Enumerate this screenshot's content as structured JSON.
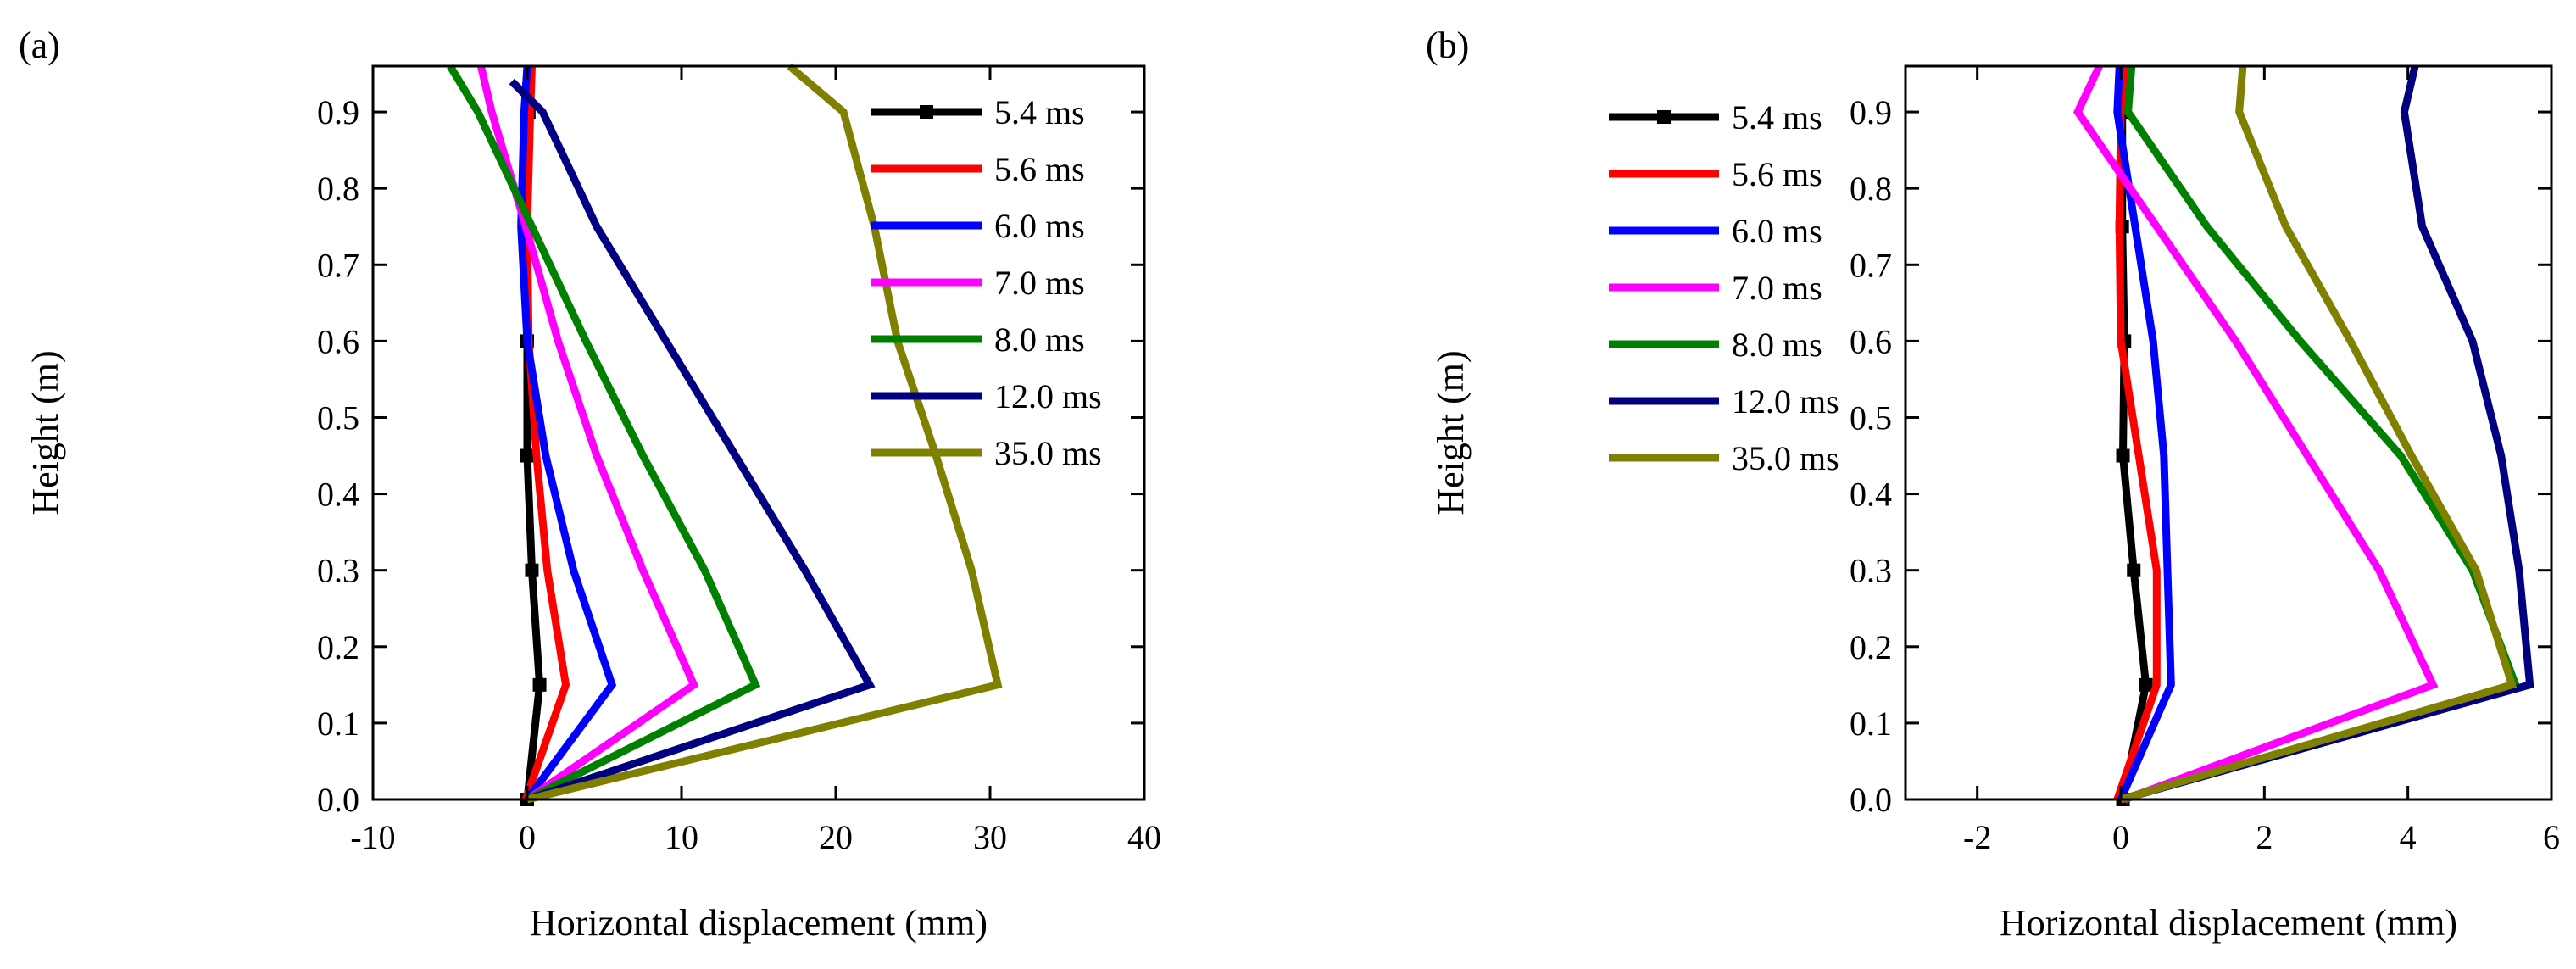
{
  "chart_data": [
    {
      "panel_label": "(a)",
      "type": "line",
      "xlabel": "Horizontal displacement (mm)",
      "ylabel": "Height (m)",
      "xlim": [
        -10,
        40
      ],
      "ylim": [
        0,
        0.96
      ],
      "xticks": [
        -10,
        0,
        10,
        20,
        30,
        40
      ],
      "xtick_labels": [
        "-10",
        "0",
        "10",
        "20",
        "30",
        "40"
      ],
      "yticks": [
        0.0,
        0.1,
        0.2,
        0.3,
        0.4,
        0.5,
        0.6,
        0.7,
        0.8,
        0.9
      ],
      "ytick_labels": [
        "0.0",
        "0.1",
        "0.2",
        "0.3",
        "0.4",
        "0.5",
        "0.6",
        "0.7",
        "0.8",
        "0.9"
      ],
      "legend_position": "top-right",
      "series": [
        {
          "name": "5.4 ms",
          "color": "#000000",
          "marker": "square",
          "x": [
            0,
            0.8,
            0.3,
            0,
            0,
            -0.1,
            0.1,
            0.1
          ],
          "y": [
            0,
            0.15,
            0.3,
            0.45,
            0.6,
            0.75,
            0.9,
            0.96
          ]
        },
        {
          "name": "5.6 ms",
          "color": "#ff0000",
          "marker": "none",
          "x": [
            -0.1,
            2.5,
            1.3,
            0.6,
            0.1,
            0,
            0.2,
            0.3
          ],
          "y": [
            0,
            0.15,
            0.3,
            0.45,
            0.6,
            0.75,
            0.9,
            0.96
          ]
        },
        {
          "name": "6.0 ms",
          "color": "#0000ff",
          "marker": "none",
          "x": [
            0,
            5.5,
            3.0,
            1.2,
            0,
            -0.4,
            -0.2,
            0
          ],
          "y": [
            0,
            0.15,
            0.3,
            0.45,
            0.6,
            0.75,
            0.9,
            0.96
          ]
        },
        {
          "name": "7.0 ms",
          "color": "#ff00ff",
          "marker": "none",
          "x": [
            0,
            10.8,
            7.5,
            4.5,
            2.0,
            -0.1,
            -2.3,
            -3.0
          ],
          "y": [
            0,
            0.15,
            0.3,
            0.45,
            0.6,
            0.75,
            0.9,
            0.96
          ]
        },
        {
          "name": "8.0 ms",
          "color": "#008000",
          "marker": "none",
          "x": [
            0,
            14.8,
            11.5,
            7.5,
            3.8,
            0.3,
            -3.2,
            -5.0
          ],
          "y": [
            0,
            0.15,
            0.3,
            0.45,
            0.6,
            0.75,
            0.9,
            0.96
          ]
        },
        {
          "name": "12.0 ms",
          "color": "#000080",
          "marker": "none",
          "x": [
            0,
            22.2,
            18.0,
            13.5,
            9.0,
            4.5,
            1.0,
            -1.0
          ],
          "y": [
            0,
            0.15,
            0.3,
            0.45,
            0.6,
            0.75,
            0.9,
            0.94
          ]
        },
        {
          "name": "35.0 ms",
          "color": "#808000",
          "marker": "none",
          "x": [
            0,
            30.5,
            28.8,
            26.5,
            24.0,
            22.5,
            20.5,
            17.0
          ],
          "y": [
            0,
            0.15,
            0.3,
            0.45,
            0.6,
            0.75,
            0.9,
            0.96
          ]
        }
      ]
    },
    {
      "panel_label": "(b)",
      "type": "line",
      "xlabel": "Horizontal displacement (mm)",
      "ylabel": "Height (m)",
      "xlim": [
        -3,
        6
      ],
      "ylim": [
        0,
        0.96
      ],
      "xticks": [
        -2,
        0,
        2,
        4,
        6
      ],
      "xtick_labels": [
        "-2",
        "0",
        "2",
        "4",
        "6"
      ],
      "yticks": [
        0.0,
        0.1,
        0.2,
        0.3,
        0.4,
        0.5,
        0.6,
        0.7,
        0.8,
        0.9
      ],
      "ytick_labels": [
        "0.0",
        "0.1",
        "0.2",
        "0.3",
        "0.4",
        "0.5",
        "0.6",
        "0.7",
        "0.8",
        "0.9"
      ],
      "legend_position": "top-left",
      "series": [
        {
          "name": "5.4 ms",
          "color": "#000000",
          "marker": "square",
          "x": [
            0.03,
            0.35,
            0.18,
            0.03,
            0.05,
            0.02,
            0.02,
            0.02
          ],
          "y": [
            0,
            0.15,
            0.3,
            0.45,
            0.6,
            0.75,
            0.9,
            0.96
          ]
        },
        {
          "name": "5.6 ms",
          "color": "#ff0000",
          "marker": "none",
          "x": [
            -0.05,
            0.5,
            0.5,
            0.25,
            0,
            -0.02,
            0,
            0.05
          ],
          "y": [
            0,
            0.15,
            0.3,
            0.45,
            0.6,
            0.75,
            0.9,
            0.96
          ]
        },
        {
          "name": "6.0 ms",
          "color": "#0000ff",
          "marker": "none",
          "x": [
            0,
            0.7,
            0.65,
            0.6,
            0.45,
            0.2,
            -0.05,
            -0.02
          ],
          "y": [
            0,
            0.15,
            0.3,
            0.45,
            0.6,
            0.75,
            0.9,
            0.96
          ]
        },
        {
          "name": "7.0 ms",
          "color": "#ff00ff",
          "marker": "none",
          "x": [
            0.05,
            4.35,
            3.6,
            2.6,
            1.6,
            0.5,
            -0.6,
            -0.3
          ],
          "y": [
            0,
            0.15,
            0.3,
            0.45,
            0.6,
            0.75,
            0.9,
            0.96
          ]
        },
        {
          "name": "8.0 ms",
          "color": "#008000",
          "marker": "none",
          "x": [
            0,
            5.5,
            4.9,
            3.9,
            2.5,
            1.2,
            0.1,
            0.15
          ],
          "y": [
            0,
            0.15,
            0.3,
            0.45,
            0.6,
            0.75,
            0.9,
            0.96
          ]
        },
        {
          "name": "12.0 ms",
          "color": "#000080",
          "marker": "none",
          "x": [
            0,
            5.7,
            5.55,
            5.3,
            4.9,
            4.2,
            3.95,
            4.1
          ],
          "y": [
            0,
            0.15,
            0.3,
            0.45,
            0.6,
            0.75,
            0.9,
            0.96
          ]
        },
        {
          "name": "35.0 ms",
          "color": "#808000",
          "marker": "none",
          "x": [
            0,
            5.45,
            4.95,
            4.05,
            3.2,
            2.3,
            1.65,
            1.7
          ],
          "y": [
            0,
            0.15,
            0.3,
            0.45,
            0.6,
            0.75,
            0.9,
            0.96
          ]
        }
      ]
    }
  ]
}
